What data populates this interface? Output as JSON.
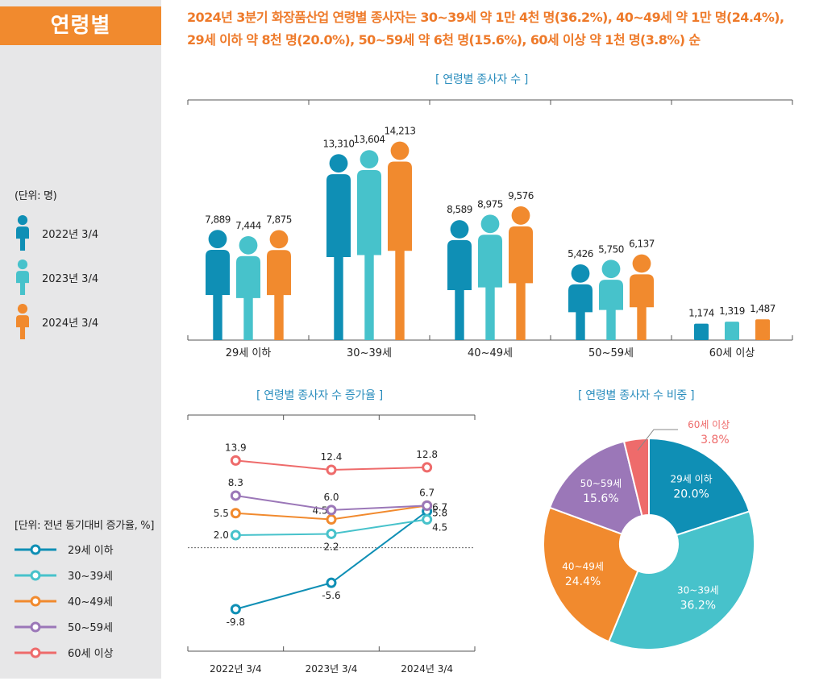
{
  "colors": {
    "y2022": "#0f8fb5",
    "y2023": "#47c2cb",
    "y2024": "#f18a2e",
    "age29": "#0f8fb5",
    "age30": "#47c2cb",
    "age40": "#f18a2e",
    "age50": "#9b77b8",
    "age60": "#ee6b6b"
  },
  "section_tab": "연령별",
  "headline": {
    "line1": "2024년 3분기 화장품산업 연령별 종사자는 30~39세 약 1만 4천 명(36.2%), 40~49세 약 1만 명(24.4%),",
    "line2": "29세 이하 약 8천 명(20.0%), 50~59세 약 6천 명(15.6%), 60세 이상 약 1천 명(3.8%) 순"
  },
  "sidebar": {
    "unit_top": "(단위: 명)",
    "person_legend": [
      {
        "label": "2022년 3/4",
        "icon": "person-icon",
        "color": "#0f8fb5"
      },
      {
        "label": "2023년 3/4",
        "icon": "person-icon",
        "color": "#47c2cb"
      },
      {
        "label": "2024년 3/4",
        "icon": "person-icon",
        "color": "#f18a2e"
      }
    ],
    "unit_bottom": "[단위: 전년 동기대비 증가율, %]",
    "line_legend": [
      {
        "label": "29세 이하",
        "color": "#0f8fb5"
      },
      {
        "label": "30~39세",
        "color": "#47c2cb"
      },
      {
        "label": "40~49세",
        "color": "#f18a2e"
      },
      {
        "label": "50~59세",
        "color": "#9b77b8"
      },
      {
        "label": "60세 이상",
        "color": "#ee6b6b"
      }
    ]
  },
  "chart_data": [
    {
      "type": "bar",
      "title": "[ 연령별 종사자 수 ]",
      "categories": [
        "29세 이하",
        "30~39세",
        "40~49세",
        "50~59세",
        "60세 이상"
      ],
      "series": [
        {
          "name": "2022년 3/4",
          "values": [
            7889,
            13310,
            8589,
            5426,
            1174
          ],
          "labels": [
            "7,889",
            "13,310",
            "8,589",
            "5,426",
            "1,174"
          ]
        },
        {
          "name": "2023년 3/4",
          "values": [
            7444,
            13604,
            8975,
            5750,
            1319
          ],
          "labels": [
            "7,444",
            "13,604",
            "8,975",
            "5,750",
            "1,319"
          ]
        },
        {
          "name": "2024년 3/4",
          "values": [
            7875,
            14213,
            9576,
            6137,
            1487
          ],
          "labels": [
            "7,875",
            "14,213",
            "9,576",
            "6,137",
            "1,487"
          ]
        }
      ],
      "ylim": [
        0,
        15000
      ]
    },
    {
      "type": "line",
      "title": "[ 연령별 종사자 수 증가율 ]",
      "x": [
        "2022년 3/4",
        "2023년 3/4",
        "2024년 3/4"
      ],
      "series": [
        {
          "name": "29세 이하",
          "values": [
            -9.8,
            -5.6,
            5.8
          ],
          "labels": [
            "-9.8",
            "-5.6",
            "5.8"
          ]
        },
        {
          "name": "30~39세",
          "values": [
            2.0,
            2.2,
            4.5
          ],
          "labels": [
            "2.0",
            "2.2",
            "4.5"
          ]
        },
        {
          "name": "40~49세",
          "values": [
            5.5,
            4.5,
            6.7
          ],
          "labels": [
            "5.5",
            "4.5",
            "6.7"
          ]
        },
        {
          "name": "50~59세",
          "values": [
            8.3,
            6.0,
            6.7
          ],
          "labels": [
            "8.3",
            "6.0",
            "6.7"
          ]
        },
        {
          "name": "60세 이상",
          "values": [
            13.9,
            12.4,
            12.8
          ],
          "labels": [
            "13.9",
            "12.4",
            "12.8"
          ]
        }
      ],
      "ylim": [
        -12,
        16
      ],
      "zero_line": true
    },
    {
      "type": "pie",
      "title": "[ 연령별 종사자 수 비중 ]",
      "slices": [
        {
          "label": "29세 이하",
          "value": 20.0,
          "pct": "20.0%"
        },
        {
          "label": "30~39세",
          "value": 36.2,
          "pct": "36.2%"
        },
        {
          "label": "40~49세",
          "value": 24.4,
          "pct": "24.4%"
        },
        {
          "label": "50~59세",
          "value": 15.6,
          "pct": "15.6%"
        },
        {
          "label": "60세 이상",
          "value": 3.8,
          "pct": "3.8%"
        }
      ],
      "donut": true
    }
  ]
}
